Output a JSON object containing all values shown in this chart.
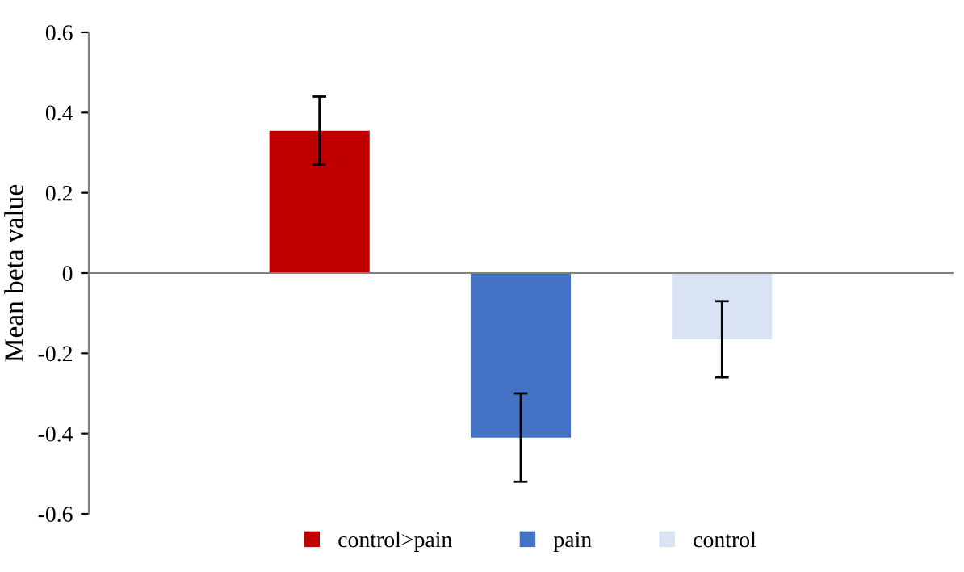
{
  "chart_data": {
    "type": "bar",
    "ylabel": "Mean beta value",
    "categories": [
      null
    ],
    "series": [
      {
        "name": "control>pain",
        "color": "#c00000",
        "values": [
          0.355
        ],
        "errors": [
          [
            0.27,
            0.44
          ]
        ]
      },
      {
        "name": "pain",
        "color": "#4472c4",
        "values": [
          -0.41
        ],
        "errors": [
          [
            -0.52,
            -0.3
          ]
        ]
      },
      {
        "name": "control",
        "color": "#dae3f3",
        "values": [
          -0.165
        ],
        "errors": [
          [
            -0.26,
            -0.07
          ]
        ]
      }
    ],
    "ylim": [
      -0.6,
      0.6
    ],
    "yticks": [
      {
        "value": -0.6,
        "label": "-0.6"
      },
      {
        "value": -0.4,
        "label": "-0.4"
      },
      {
        "value": -0.2,
        "label": "-0.2"
      },
      0,
      0.2,
      0.4,
      0.6
    ],
    "legend": "bottom"
  }
}
